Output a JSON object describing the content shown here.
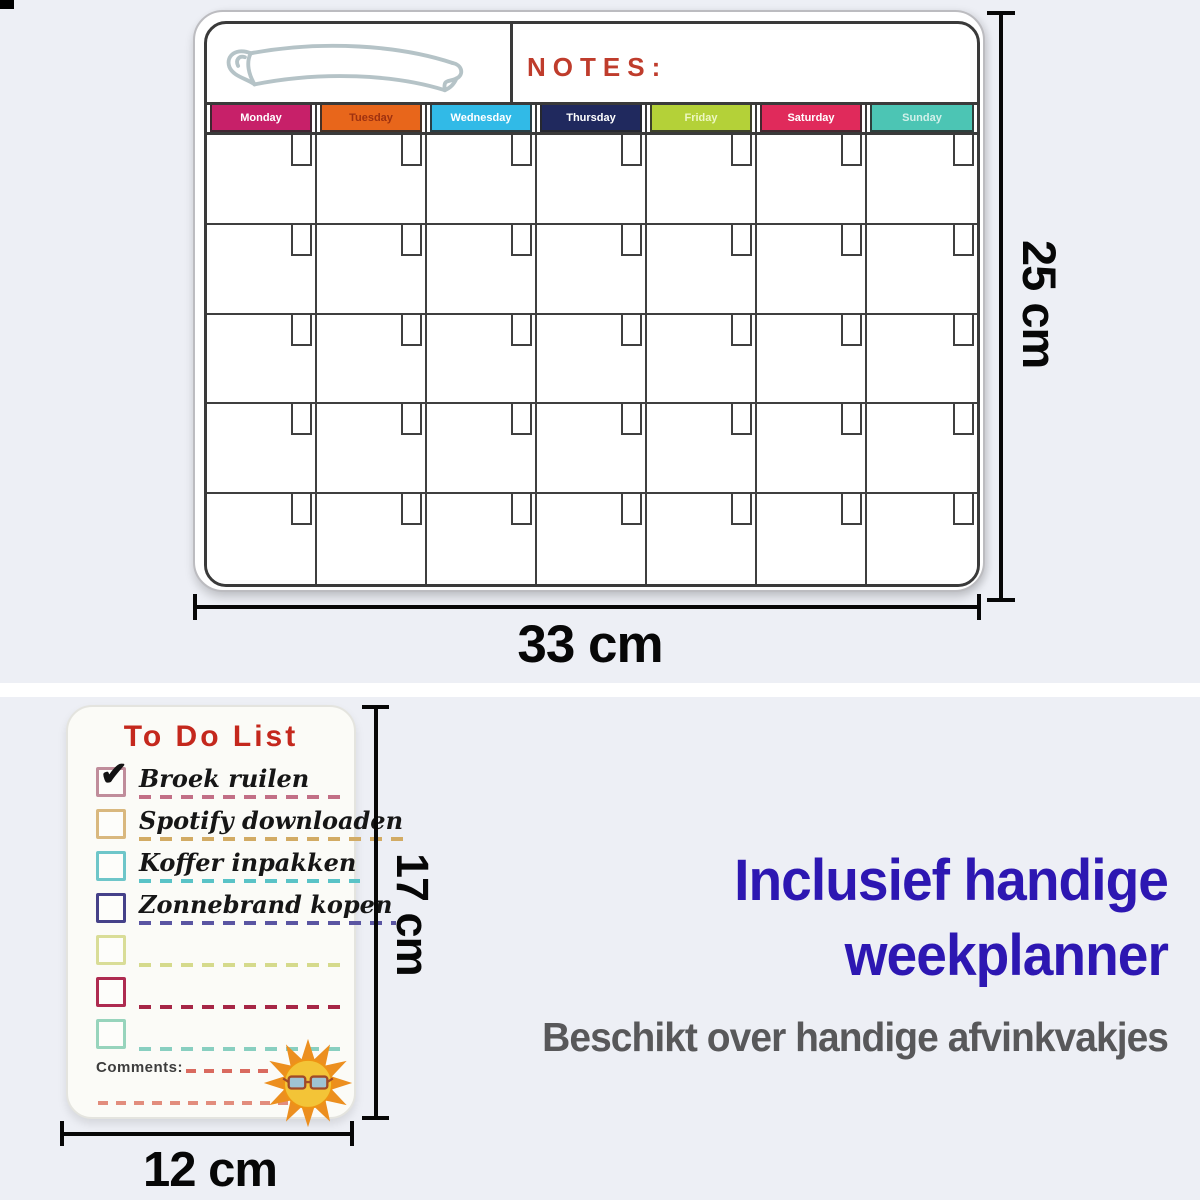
{
  "board": {
    "notes_label": "NOTES:",
    "days": [
      {
        "label": "Monday",
        "bg": "#c72069",
        "fg": "#ffffff"
      },
      {
        "label": "Tuesday",
        "bg": "#e8661b",
        "fg": "#9e3110"
      },
      {
        "label": "Wednesday",
        "bg": "#31bae7",
        "fg": "#ffffff"
      },
      {
        "label": "Thursday",
        "bg": "#20295e",
        "fg": "#ffffff"
      },
      {
        "label": "Friday",
        "bg": "#b4d138",
        "fg": "#edf7c2"
      },
      {
        "label": "Saturday",
        "bg": "#e02a5b",
        "fg": "#ffffff"
      },
      {
        "label": "Sunday",
        "bg": "#4cc5b4",
        "fg": "#d2f1ea"
      }
    ],
    "weeks": 5,
    "columns": 7
  },
  "dimensions": {
    "board_width_label": "33 cm",
    "board_height_label": "25 cm",
    "pad_width_label": "12 cm",
    "pad_height_label": "17 cm"
  },
  "todo_pad": {
    "title": "To Do List",
    "title_color": "#c4281d",
    "check_glyph": "✔",
    "items": [
      {
        "text": "Broek ruilen",
        "checked": true,
        "box_color": "#c08d9b",
        "dash_color": "#c26f86"
      },
      {
        "text": "Spotify downloaden",
        "checked": false,
        "box_color": "#d9b87e",
        "dash_color": "#d2ab64"
      },
      {
        "text": "Koffer inpakken",
        "checked": false,
        "box_color": "#6ec6c9",
        "dash_color": "#59c3c7"
      },
      {
        "text": "Zonnebrand kopen",
        "checked": false,
        "box_color": "#454189",
        "dash_color": "#5a55a2"
      },
      {
        "text": "",
        "checked": false,
        "box_color": "#d9dd97",
        "dash_color": "#d5da8c"
      },
      {
        "text": "",
        "checked": false,
        "box_color": "#ae2b50",
        "dash_color": "#a62646"
      },
      {
        "text": "",
        "checked": false,
        "box_color": "#97d4bc",
        "dash_color": "#88cfc0"
      }
    ],
    "comments_label": "Comments:",
    "comments_dash_color": "#d96a5f",
    "bottom_dash_color": "#e28d7d"
  },
  "promo": {
    "headline_line1": "Inclusief handige",
    "headline_line2": "weekplanner",
    "headline_color": "#2d17b2",
    "subline": "Beschikt over handige afvinkvakjes",
    "subline_color": "#58585a"
  }
}
